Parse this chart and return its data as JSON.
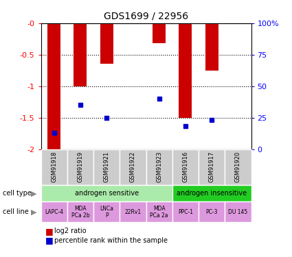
{
  "title": "GDS1699 / 22956",
  "samples": [
    "GSM91918",
    "GSM91919",
    "GSM91921",
    "GSM91922",
    "GSM91923",
    "GSM91916",
    "GSM91917",
    "GSM91920"
  ],
  "log2_ratio": [
    -2.0,
    -1.0,
    -0.65,
    0.0,
    -0.32,
    -1.5,
    -0.75,
    0.0
  ],
  "percentile_rank_pct": [
    13,
    35,
    25,
    null,
    40,
    18,
    23,
    null
  ],
  "ylim_left": [
    -2.0,
    0.0
  ],
  "ylim_right": [
    0,
    100
  ],
  "yticks_left": [
    0.0,
    -0.5,
    -1.0,
    -1.5,
    -2.0
  ],
  "yticks_left_labels": [
    "-0",
    "-0.5",
    "-1",
    "-1.5",
    "-2"
  ],
  "yticks_right": [
    100,
    75,
    50,
    25,
    0
  ],
  "yticks_right_labels": [
    "100%",
    "75",
    "50",
    "25",
    "0"
  ],
  "cell_type_groups": [
    {
      "label": "androgen sensitive",
      "start": 0,
      "end": 5,
      "color": "#aaeaaa"
    },
    {
      "label": "androgen insensitive",
      "start": 5,
      "end": 8,
      "color": "#22cc22"
    }
  ],
  "cell_lines": [
    "LAPC-4",
    "MDA\nPCa 2b",
    "LNCa\nP",
    "22Rv1",
    "MDA\nPCa 2a",
    "PPC-1",
    "PC-3",
    "DU 145"
  ],
  "cell_line_color": "#dd99dd",
  "bar_color": "#cc0000",
  "dot_color": "#0000cc",
  "label_cell_type": "cell type",
  "label_cell_line": "cell line",
  "legend_bar": "log2 ratio",
  "legend_dot": "percentile rank within the sample",
  "sample_box_color": "#cccccc"
}
